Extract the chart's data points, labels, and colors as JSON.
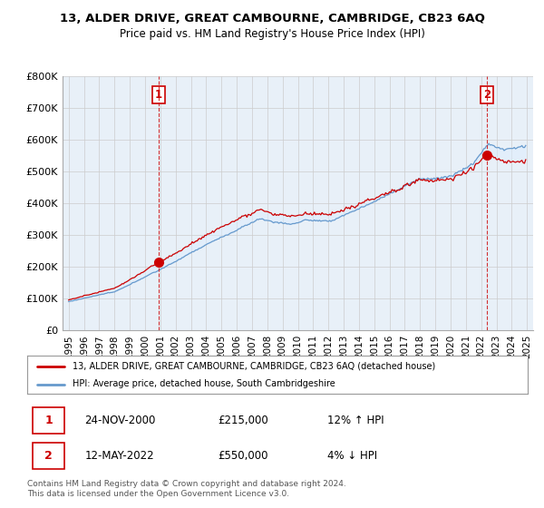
{
  "title": "13, ALDER DRIVE, GREAT CAMBOURNE, CAMBRIDGE, CB23 6AQ",
  "subtitle": "Price paid vs. HM Land Registry's House Price Index (HPI)",
  "legend_line1": "13, ALDER DRIVE, GREAT CAMBOURNE, CAMBRIDGE, CB23 6AQ (detached house)",
  "legend_line2": "HPI: Average price, detached house, South Cambridgeshire",
  "footer": "Contains HM Land Registry data © Crown copyright and database right 2024.\nThis data is licensed under the Open Government Licence v3.0.",
  "transaction1_date": "24-NOV-2000",
  "transaction1_price": "£215,000",
  "transaction1_hpi": "12% ↑ HPI",
  "transaction2_date": "12-MAY-2022",
  "transaction2_price": "£550,000",
  "transaction2_hpi": "4% ↓ HPI",
  "red_color": "#cc0000",
  "blue_color": "#6699cc",
  "fill_color": "#ddeeff",
  "grid_color": "#cccccc",
  "background_color": "#ffffff",
  "chart_bg_color": "#e8f0f8",
  "ylim": [
    0,
    800000
  ],
  "yticks": [
    0,
    100000,
    200000,
    300000,
    400000,
    500000,
    600000,
    700000,
    800000
  ],
  "ytick_labels": [
    "£0",
    "£100K",
    "£200K",
    "£300K",
    "£400K",
    "£500K",
    "£600K",
    "£700K",
    "£800K"
  ],
  "transaction1_x": 2000.9,
  "transaction1_y": 215000,
  "transaction2_x": 2022.37,
  "transaction2_y": 550000,
  "xlim_left": 1994.6,
  "xlim_right": 2025.4
}
